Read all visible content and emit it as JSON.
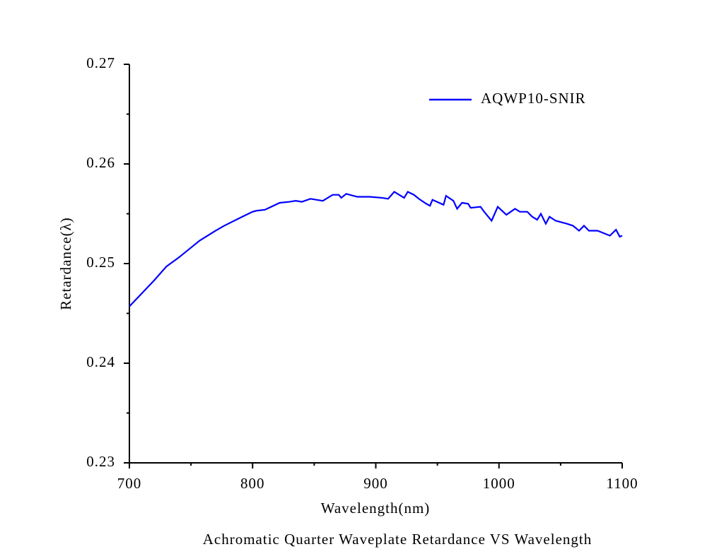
{
  "chart_data": {
    "type": "line",
    "title": "Achromatic Quarter Waveplate Retardance VS Wavelength",
    "x_label": "Wavelength(nm)",
    "y_label": "Retardance(λ)",
    "x": [
      700,
      720,
      730,
      740,
      750,
      757,
      770,
      777,
      790,
      800,
      803,
      810,
      822,
      830,
      835,
      840,
      847,
      857,
      865,
      870,
      872,
      876,
      885,
      895,
      905,
      910,
      915,
      923,
      926,
      931,
      935,
      941,
      944,
      946,
      955,
      957,
      963,
      966,
      970,
      975,
      977,
      985,
      988,
      990,
      994,
      999,
      1006,
      1013,
      1017,
      1023,
      1027,
      1031,
      1034,
      1038,
      1041,
      1046,
      1055,
      1060,
      1065,
      1069,
      1073,
      1080,
      1090,
      1095,
      1098,
      1100
    ],
    "series": [
      {
        "name": "AQWP10-SNIR",
        "color": "#0000ff",
        "values": [
          0.2457,
          0.2483,
          0.2497,
          0.2506,
          0.2516,
          0.2523,
          0.2533,
          0.2538,
          0.2546,
          0.2552,
          0.2553,
          0.2554,
          0.2561,
          0.2562,
          0.2563,
          0.2562,
          0.2565,
          0.2563,
          0.2569,
          0.2569,
          0.2566,
          0.257,
          0.2567,
          0.2567,
          0.2566,
          0.2565,
          0.2572,
          0.2566,
          0.2572,
          0.2569,
          0.2565,
          0.256,
          0.2558,
          0.2564,
          0.2559,
          0.2568,
          0.2563,
          0.2555,
          0.2561,
          0.256,
          0.2556,
          0.2557,
          0.2552,
          0.2549,
          0.2543,
          0.2557,
          0.2549,
          0.2555,
          0.2552,
          0.2552,
          0.2547,
          0.2544,
          0.255,
          0.254,
          0.2547,
          0.2543,
          0.254,
          0.2538,
          0.2533,
          0.2538,
          0.2533,
          0.2533,
          0.2528,
          0.2534,
          0.2527,
          0.2528
        ]
      }
    ],
    "xlim": [
      700,
      1100
    ],
    "xticks": [
      700,
      800,
      900,
      1000,
      1100
    ],
    "ylim": [
      0.23,
      0.27
    ],
    "yticks": [
      0.23,
      0.24,
      0.25,
      0.26,
      0.27
    ],
    "legend": "upper right"
  }
}
